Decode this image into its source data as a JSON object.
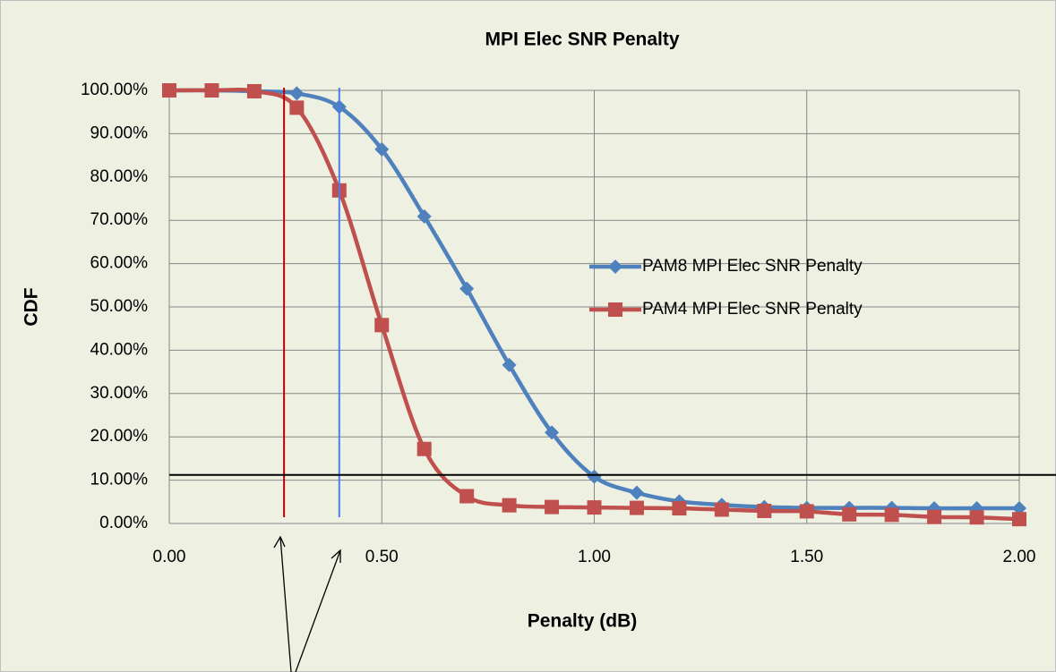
{
  "chart_data": {
    "type": "line",
    "title": "MPI Elec SNR Penalty",
    "xlabel": "Penalty (dB)",
    "ylabel": "CDF",
    "x": [
      0,
      0.1,
      0.2,
      0.3,
      0.4,
      0.5,
      0.6,
      0.7,
      0.8,
      0.9,
      1.0,
      1.1,
      1.2,
      1.3,
      1.4,
      1.5,
      1.6,
      1.7,
      1.8,
      1.9,
      2.0
    ],
    "series": [
      {
        "name": "PAM8 MPI Elec SNR Penalty",
        "color": "#4f81bd",
        "marker": "diamond",
        "values": [
          100,
          100,
          99.8,
          99.3,
          96.2,
          86.4,
          70.9,
          54.2,
          36.6,
          21.0,
          10.8,
          7.1,
          5.1,
          4.3,
          3.8,
          3.6,
          3.6,
          3.6,
          3.5,
          3.5,
          3.5
        ]
      },
      {
        "name": "PAM4 MPI Elec SNR Penalty",
        "color": "#c0504d",
        "marker": "square",
        "values": [
          100,
          100,
          99.8,
          96.0,
          76.9,
          45.8,
          17.2,
          6.3,
          4.2,
          3.8,
          3.7,
          3.6,
          3.5,
          3.2,
          2.9,
          2.8,
          2.1,
          2.0,
          1.5,
          1.4,
          1.0
        ]
      }
    ],
    "xlim": [
      0,
      2
    ],
    "xticks": [
      {
        "value": 0,
        "label": "0.00"
      },
      {
        "value": 0.5,
        "label": "0.50"
      },
      {
        "value": 1,
        "label": "1.00"
      },
      {
        "value": 1.5,
        "label": "1.50"
      },
      {
        "value": 2,
        "label": "2.00"
      }
    ],
    "ylim": [
      0,
      100
    ],
    "yticks": [
      {
        "value": 0,
        "label": "0.00%"
      },
      {
        "value": 10,
        "label": "10.00%"
      },
      {
        "value": 20,
        "label": "20.00%"
      },
      {
        "value": 30,
        "label": "30.00%"
      },
      {
        "value": 40,
        "label": "40.00%"
      },
      {
        "value": 50,
        "label": "50.00%"
      },
      {
        "value": 60,
        "label": "60.00%"
      },
      {
        "value": 70,
        "label": "70.00%"
      },
      {
        "value": 80,
        "label": "80.00%"
      },
      {
        "value": 90,
        "label": "90.00%"
      },
      {
        "value": 100,
        "label": "100.00%"
      }
    ],
    "grid": true,
    "legend": "right",
    "reference_lines": {
      "x": [
        {
          "value": 0.27,
          "color": "#c00000"
        },
        {
          "value": 0.4,
          "color": "#4a7ef0"
        }
      ],
      "y": [
        {
          "value": 11.2,
          "color": "#000000"
        }
      ]
    }
  }
}
